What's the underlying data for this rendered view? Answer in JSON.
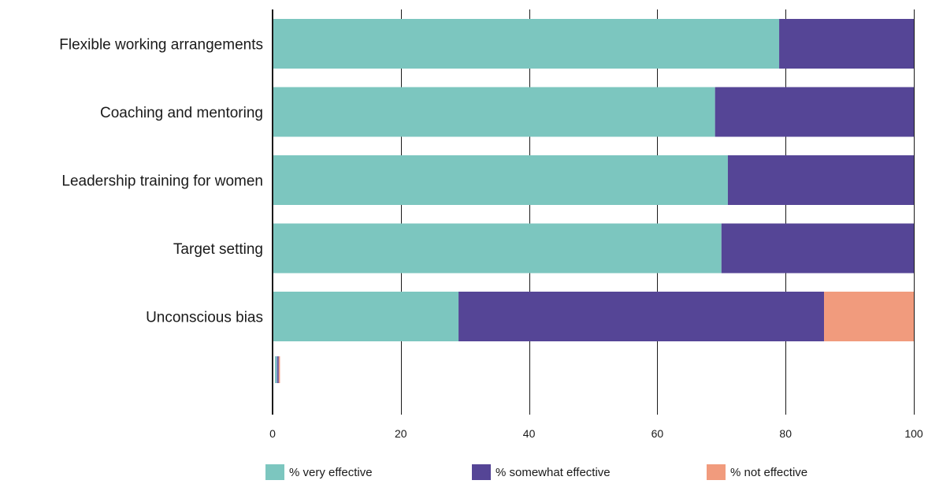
{
  "chart_data": {
    "type": "bar",
    "orientation": "horizontal",
    "stacked": true,
    "categories": [
      "Flexible working arrangements",
      "Coaching and mentoring",
      "Leadership training for women",
      "Target setting",
      "Unconscious bias"
    ],
    "series": [
      {
        "name": "% very effective",
        "color": "#7cc6bf",
        "values": [
          79,
          69,
          71,
          70,
          29
        ]
      },
      {
        "name": "% somewhat effective",
        "color": "#554596",
        "values": [
          21,
          31,
          29,
          30,
          57
        ]
      },
      {
        "name": "% not effective",
        "color": "#f19b7d",
        "values": [
          0,
          0,
          0,
          0,
          14
        ]
      }
    ],
    "xlim": [
      0,
      100
    ],
    "xticks": [
      "0",
      "20",
      "40",
      "60",
      "80",
      "100"
    ],
    "xtick_values": [
      0,
      20,
      40,
      60,
      80,
      100
    ],
    "grid": true,
    "legend_position": "bottom",
    "marker_color": "#7fa7c9"
  }
}
